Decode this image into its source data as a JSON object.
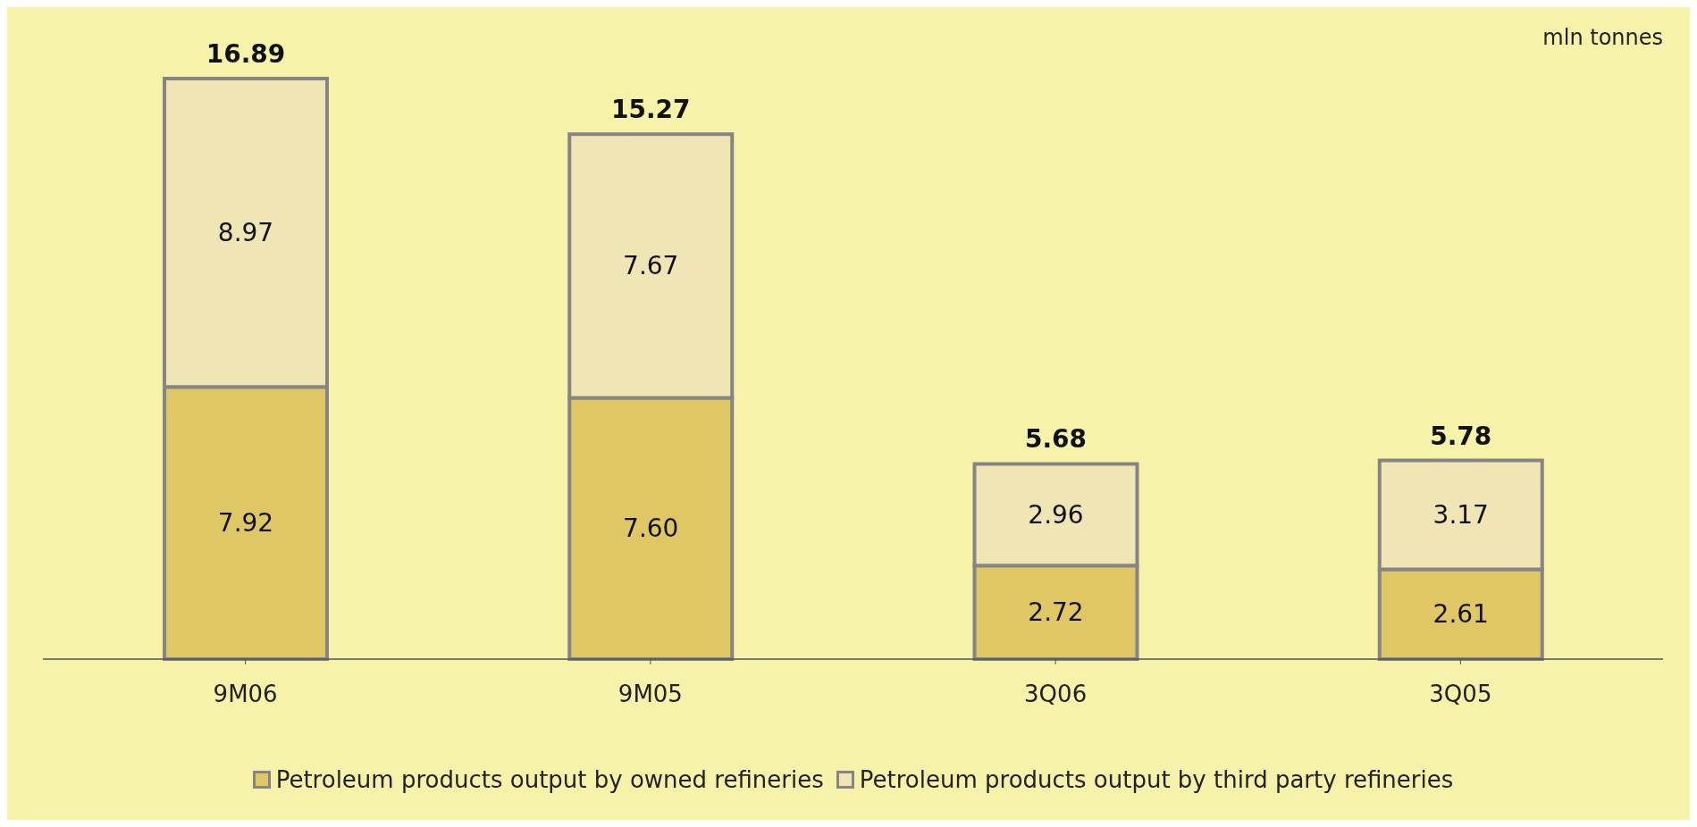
{
  "chart_data": {
    "type": "bar",
    "stacked": true,
    "categories": [
      "9M06",
      "9M05",
      "3Q06",
      "3Q05"
    ],
    "series": [
      {
        "name": "Petroleum products output by owned refineries",
        "color": "#dfc765",
        "values": [
          7.92,
          7.6,
          2.72,
          2.61
        ],
        "value_labels": [
          "7.92",
          "7.60",
          "2.72",
          "2.61"
        ]
      },
      {
        "name": "Petroleum products output by third party refineries",
        "color": "#f0e5b5",
        "values": [
          8.97,
          7.67,
          2.96,
          3.17
        ],
        "value_labels": [
          "8.97",
          "7.67",
          "2.96",
          "3.17"
        ]
      }
    ],
    "totals": [
      "16.89",
      "15.27",
      "5.68",
      "5.78"
    ],
    "annotations": [
      "mln tonnes"
    ],
    "legend": "bottom"
  }
}
